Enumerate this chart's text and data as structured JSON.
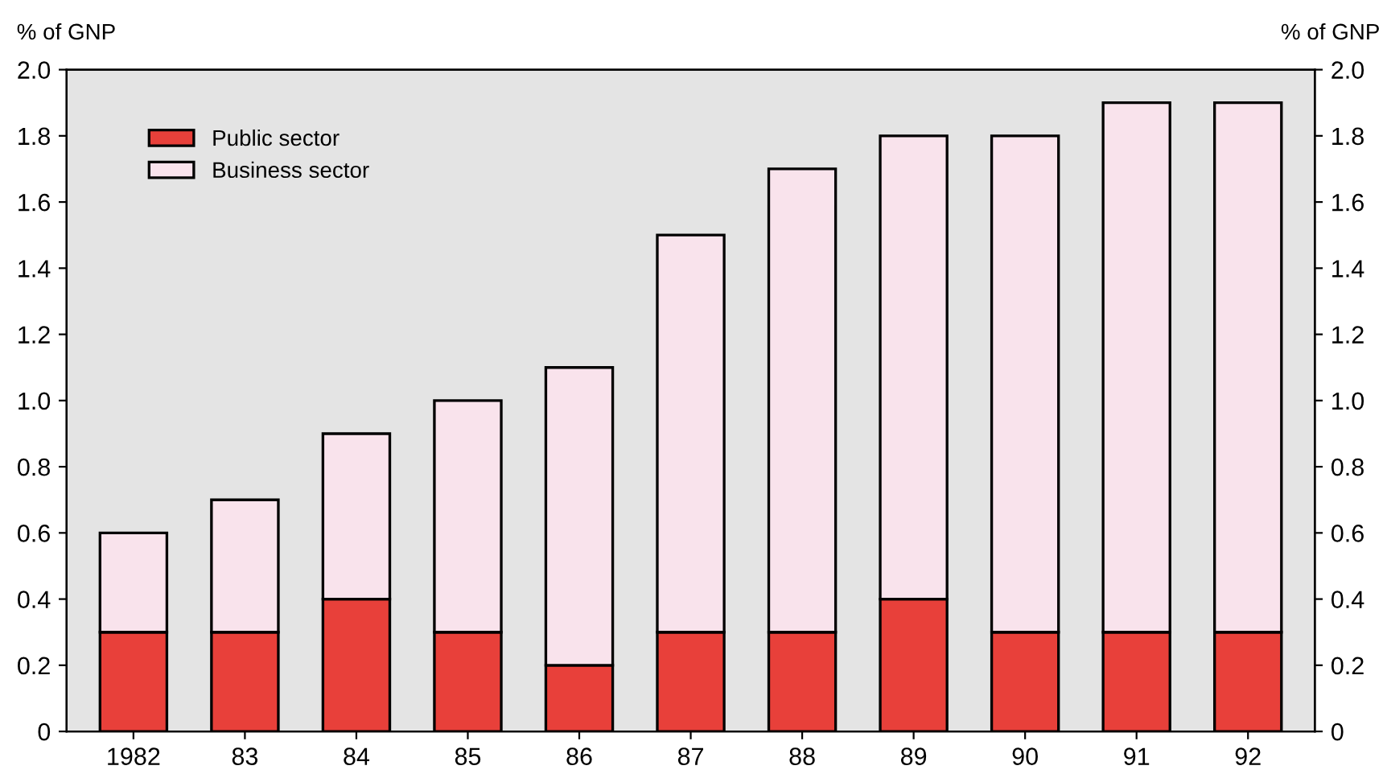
{
  "chart_data": {
    "type": "bar",
    "stacked": true,
    "ylabel": "% of GNP",
    "y2label": "% of GNP",
    "categories": [
      "1982",
      "83",
      "84",
      "85",
      "86",
      "87",
      "88",
      "89",
      "90",
      "91",
      "92"
    ],
    "series": [
      {
        "name": "Public sector",
        "color": "#e8403a",
        "values": [
          0.3,
          0.3,
          0.4,
          0.3,
          0.2,
          0.3,
          0.3,
          0.4,
          0.3,
          0.3,
          0.3
        ]
      },
      {
        "name": "Business sector",
        "color": "#f9e3ec",
        "values": [
          0.3,
          0.4,
          0.5,
          0.7,
          0.9,
          1.2,
          1.4,
          1.4,
          1.5,
          1.6,
          1.6
        ]
      }
    ],
    "ylim": [
      0,
      2.0
    ],
    "yticks": [
      0,
      {
        "value": 0.2,
        "label": "0.2"
      },
      {
        "value": 0.4,
        "label": "0.4"
      },
      {
        "value": 0.6,
        "label": "0.6"
      },
      {
        "value": 0.8,
        "label": "0.8"
      },
      {
        "value": 1.0,
        "label": "1.0"
      },
      {
        "value": 1.2,
        "label": "1.2"
      },
      {
        "value": 1.4,
        "label": "1.4"
      },
      {
        "value": 1.6,
        "label": "1.6"
      },
      {
        "value": 1.8,
        "label": "1.8"
      },
      {
        "value": 2.0,
        "label": "2.0"
      }
    ],
    "y2lim": [
      0,
      2.0
    ],
    "y2ticks": [
      0,
      {
        "value": 0.2,
        "label": "0.2"
      },
      {
        "value": 0.4,
        "label": "0.4"
      },
      {
        "value": 0.6,
        "label": "0.6"
      },
      {
        "value": 0.8,
        "label": "0.8"
      },
      {
        "value": 1.0,
        "label": "1.0"
      },
      {
        "value": 1.2,
        "label": "1.2"
      },
      {
        "value": 1.4,
        "label": "1.4"
      },
      {
        "value": 1.6,
        "label": "1.6"
      },
      {
        "value": 1.8,
        "label": "1.8"
      },
      {
        "value": 2.0,
        "label": "2.0"
      }
    ],
    "grid": false,
    "legend": "top left"
  }
}
